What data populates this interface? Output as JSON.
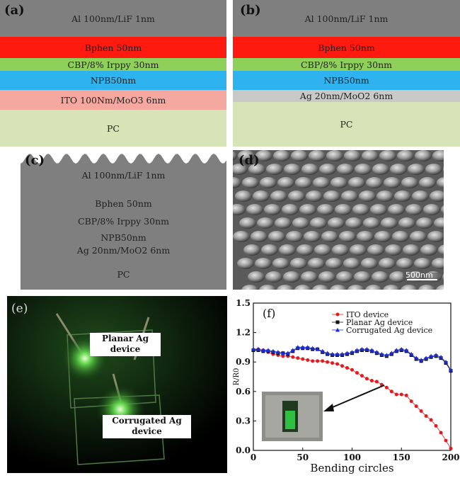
{
  "panel_a": {
    "label": "(a)",
    "layers": [
      {
        "text": "Al 100nm/LiF 1nm",
        "color": "#7f7f7f"
      },
      {
        "text": "Bphen 50nm",
        "color": "#ff1a10"
      },
      {
        "text": "CBP/8% Irppy 30nm",
        "color": "#8fd05a"
      },
      {
        "text": "NPB50nm",
        "color": "#2fb3ef"
      },
      {
        "text": "ITO 100Nm/MoO3 6nm",
        "color": "#f4a8a0"
      },
      {
        "text": "PC",
        "color": "#d6e4b8"
      }
    ]
  },
  "panel_b": {
    "label": "(b)",
    "layers": [
      {
        "text": "Al 100nm/LiF 1nm",
        "color": "#7f7f7f"
      },
      {
        "text": "Bphen 50nm",
        "color": "#ff1a10"
      },
      {
        "text": "CBP/8% Irppy 30nm",
        "color": "#8fd05a"
      },
      {
        "text": "NPB50nm",
        "color": "#2fb3ef"
      },
      {
        "text": "Ag 20nm/MoO2 6nm",
        "color": "#c9c9c9"
      },
      {
        "text": "PC",
        "color": "#d6e4b8"
      }
    ]
  },
  "panel_c": {
    "label": "(c)",
    "layers": [
      {
        "text": "Al 100nm/LiF 1nm",
        "color": "#7f7f7f"
      },
      {
        "text": "Bphen 50nm",
        "color": "#ff1a10"
      },
      {
        "text": "CBP/8% Irppy 30nm",
        "color": "#8fd05a"
      },
      {
        "text": "NPB50nm",
        "color": "#2fb3ef"
      },
      {
        "text": "Ag 20nm/MoO2 6nm",
        "color": "#c9c9c9"
      },
      {
        "text": "PC",
        "color": "#d6e4b8"
      }
    ]
  },
  "panel_d": {
    "label": "(d)",
    "scale_bar": "500nm"
  },
  "panel_e": {
    "label": "(e)",
    "planar": "Planar Ag device",
    "corrugated": "Corrugated Ag device"
  },
  "chart_data": {
    "type": "line",
    "label": "(f)",
    "xlabel": "Bending circles",
    "ylabel": "R/R0",
    "xlim": [
      0,
      200
    ],
    "ylim": [
      0.0,
      1.5
    ],
    "xticks": [
      "0",
      "50",
      "100",
      "150",
      "200"
    ],
    "yticks": [
      "0.0",
      "0.3",
      "0.6",
      "0.9",
      "1.2",
      "1.5"
    ],
    "legend_placement": "top-right",
    "series": [
      {
        "name": "ITO device",
        "color": "#e8191c",
        "marker": "circle",
        "x": [
          0,
          5,
          10,
          15,
          20,
          25,
          30,
          35,
          40,
          45,
          50,
          55,
          60,
          65,
          70,
          75,
          80,
          85,
          90,
          95,
          100,
          105,
          110,
          115,
          120,
          125,
          130,
          135,
          140,
          145,
          150,
          155,
          160,
          165,
          170,
          175,
          180,
          185,
          190,
          195,
          200
        ],
        "y": [
          1.02,
          1.03,
          1.02,
          1.0,
          0.98,
          0.97,
          0.96,
          0.96,
          0.95,
          0.94,
          0.93,
          0.92,
          0.91,
          0.91,
          0.91,
          0.9,
          0.89,
          0.88,
          0.86,
          0.84,
          0.82,
          0.79,
          0.76,
          0.73,
          0.71,
          0.7,
          0.67,
          0.64,
          0.6,
          0.57,
          0.57,
          0.56,
          0.5,
          0.45,
          0.4,
          0.35,
          0.31,
          0.25,
          0.18,
          0.1,
          0.02
        ]
      },
      {
        "name": "Planar Ag device",
        "color": "#111111",
        "marker": "square",
        "x": [
          0,
          5,
          10,
          15,
          20,
          25,
          30,
          35,
          40,
          45,
          50,
          55,
          60,
          65,
          70,
          75,
          80,
          85,
          90,
          95,
          100,
          105,
          110,
          115,
          120,
          125,
          130,
          135,
          140,
          145,
          150,
          155,
          160,
          165,
          170,
          175,
          180,
          185,
          190,
          195,
          200
        ],
        "y": [
          1.02,
          1.02,
          1.01,
          1.01,
          1.0,
          0.99,
          0.99,
          0.98,
          1.01,
          1.04,
          1.04,
          1.04,
          1.03,
          1.03,
          1.0,
          0.98,
          0.97,
          0.97,
          0.97,
          0.98,
          0.99,
          1.01,
          1.02,
          1.02,
          1.01,
          0.99,
          0.97,
          0.96,
          0.98,
          1.01,
          1.02,
          1.01,
          0.97,
          0.93,
          0.91,
          0.93,
          0.95,
          0.96,
          0.94,
          0.89,
          0.81
        ]
      },
      {
        "name": "Corrugated Ag device",
        "color": "#1b2bd6",
        "marker": "triangle",
        "x": [
          0,
          5,
          10,
          15,
          20,
          25,
          30,
          35,
          40,
          45,
          50,
          55,
          60,
          65,
          70,
          75,
          80,
          85,
          90,
          95,
          100,
          105,
          110,
          115,
          120,
          125,
          130,
          135,
          140,
          145,
          150,
          155,
          160,
          165,
          170,
          175,
          180,
          185,
          190,
          195,
          200
        ],
        "y": [
          1.03,
          1.03,
          1.02,
          1.02,
          1.01,
          1.0,
          0.99,
          0.99,
          1.02,
          1.05,
          1.05,
          1.05,
          1.04,
          1.03,
          1.01,
          0.99,
          0.98,
          0.98,
          0.98,
          0.99,
          1.0,
          1.02,
          1.03,
          1.03,
          1.02,
          1.0,
          0.98,
          0.97,
          0.99,
          1.02,
          1.03,
          1.02,
          0.98,
          0.94,
          0.92,
          0.94,
          0.96,
          0.97,
          0.95,
          0.9,
          0.82
        ]
      }
    ]
  }
}
